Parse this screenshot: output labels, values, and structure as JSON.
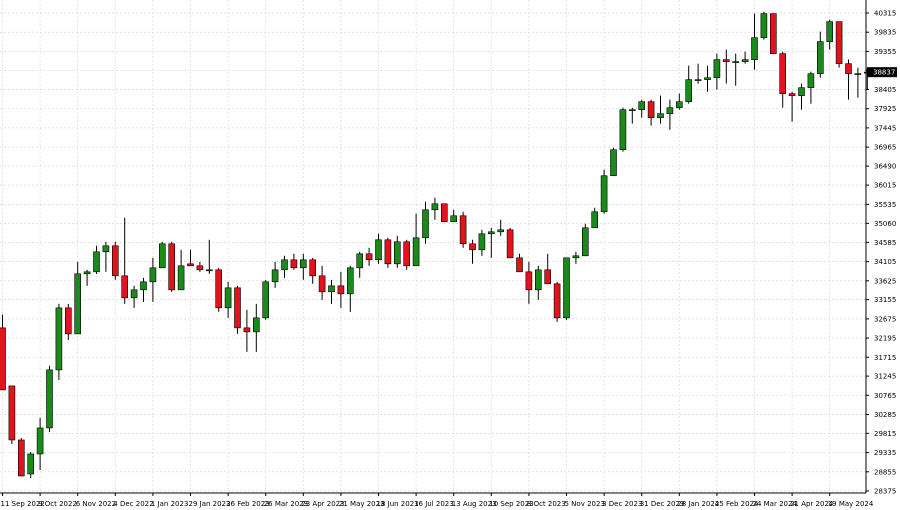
{
  "colors": {
    "background": "#ffffff",
    "grid": "#d9d9d9",
    "up": "#1a8a1a",
    "down": "#e0141c",
    "wick": "#000000",
    "axis_text": "#000000",
    "price_tag": "#000000"
  },
  "chart_data": {
    "type": "candlestick",
    "timeframe": "weekly",
    "grid": true,
    "ylim": [
      28375,
      40370
    ],
    "y_ticks": [
      "40315",
      "39835",
      "39355",
      "38880",
      "38405",
      "37925",
      "37445",
      "36965",
      "36490",
      "36015",
      "35535",
      "35060",
      "34585",
      "34105",
      "33625",
      "33155",
      "32675",
      "32195",
      "31715",
      "31245",
      "30765",
      "30285",
      "29815",
      "29335",
      "28855",
      "28375"
    ],
    "x_ticks": [
      {
        "label": "11 Sep 2022",
        "index": 0
      },
      {
        "label": "9 Oct 2022",
        "index": 4
      },
      {
        "label": "6 Nov 2022",
        "index": 8
      },
      {
        "label": "4 Dec 2022",
        "index": 12
      },
      {
        "label": "1 Jan 2023",
        "index": 16
      },
      {
        "label": "29 Jan 2023",
        "index": 20
      },
      {
        "label": "26 Feb 2023",
        "index": 24
      },
      {
        "label": "26 Mar 2023",
        "index": 28
      },
      {
        "label": "23 Apr 2023",
        "index": 32
      },
      {
        "label": "21 May 2023",
        "index": 36
      },
      {
        "label": "18 Jun 2023",
        "index": 40
      },
      {
        "label": "16 Jul 2023",
        "index": 44
      },
      {
        "label": "13 Aug 2023",
        "index": 48
      },
      {
        "label": "10 Sep 2023",
        "index": 52
      },
      {
        "label": "8 Oct 2023",
        "index": 56
      },
      {
        "label": "5 Nov 2023",
        "index": 60
      },
      {
        "label": "3 Dec 2023",
        "index": 64
      },
      {
        "label": "31 Dec 2023",
        "index": 68
      },
      {
        "label": "28 Jan 2024",
        "index": 72
      },
      {
        "label": "25 Feb 2024",
        "index": 76
      },
      {
        "label": "24 Mar 2024",
        "index": 80
      },
      {
        "label": "21 Apr 2024",
        "index": 84
      },
      {
        "label": "19 May 2024",
        "index": 88
      }
    ],
    "last_price": "38837",
    "candles": [
      {
        "o": 32450,
        "h": 32780,
        "l": 30900,
        "c": 30900
      },
      {
        "o": 31000,
        "h": 31000,
        "l": 29550,
        "c": 29650
      },
      {
        "o": 29650,
        "h": 29700,
        "l": 28750,
        "c": 28750
      },
      {
        "o": 28800,
        "h": 29350,
        "l": 28700,
        "c": 29300
      },
      {
        "o": 29300,
        "h": 30200,
        "l": 28900,
        "c": 29950
      },
      {
        "o": 29950,
        "h": 31500,
        "l": 29850,
        "c": 31400
      },
      {
        "o": 31400,
        "h": 33050,
        "l": 31150,
        "c": 32950
      },
      {
        "o": 32950,
        "h": 33050,
        "l": 32150,
        "c": 32300
      },
      {
        "o": 32300,
        "h": 34100,
        "l": 32300,
        "c": 33800
      },
      {
        "o": 33800,
        "h": 33900,
        "l": 33500,
        "c": 33850
      },
      {
        "o": 33850,
        "h": 34500,
        "l": 33800,
        "c": 34350
      },
      {
        "o": 34350,
        "h": 34600,
        "l": 33850,
        "c": 34500
      },
      {
        "o": 34500,
        "h": 34600,
        "l": 33650,
        "c": 33750
      },
      {
        "o": 33750,
        "h": 35200,
        "l": 33050,
        "c": 33200
      },
      {
        "o": 33200,
        "h": 33500,
        "l": 32950,
        "c": 33400
      },
      {
        "o": 33400,
        "h": 33700,
        "l": 33100,
        "c": 33600
      },
      {
        "o": 33600,
        "h": 34200,
        "l": 33100,
        "c": 33950
      },
      {
        "o": 33950,
        "h": 34600,
        "l": 33950,
        "c": 34550
      },
      {
        "o": 34550,
        "h": 34600,
        "l": 33350,
        "c": 33400
      },
      {
        "o": 33400,
        "h": 34400,
        "l": 33400,
        "c": 34000
      },
      {
        "o": 34050,
        "h": 34400,
        "l": 34000,
        "c": 34000
      },
      {
        "o": 34000,
        "h": 34100,
        "l": 33850,
        "c": 33900
      },
      {
        "o": 33900,
        "h": 34650,
        "l": 33800,
        "c": 33900
      },
      {
        "o": 33900,
        "h": 33950,
        "l": 32850,
        "c": 32950
      },
      {
        "o": 32950,
        "h": 33600,
        "l": 32700,
        "c": 33450
      },
      {
        "o": 33450,
        "h": 33500,
        "l": 32300,
        "c": 32450
      },
      {
        "o": 32450,
        "h": 32900,
        "l": 31850,
        "c": 32350
      },
      {
        "o": 32350,
        "h": 33050,
        "l": 31850,
        "c": 32700
      },
      {
        "o": 32700,
        "h": 33650,
        "l": 32650,
        "c": 33600
      },
      {
        "o": 33600,
        "h": 34100,
        "l": 33450,
        "c": 33900
      },
      {
        "o": 33900,
        "h": 34250,
        "l": 33700,
        "c": 34150
      },
      {
        "o": 34150,
        "h": 34300,
        "l": 33900,
        "c": 33950
      },
      {
        "o": 33950,
        "h": 34300,
        "l": 33650,
        "c": 34150
      },
      {
        "o": 34150,
        "h": 34200,
        "l": 33550,
        "c": 33750
      },
      {
        "o": 33750,
        "h": 34000,
        "l": 33150,
        "c": 33350
      },
      {
        "o": 33350,
        "h": 33650,
        "l": 33050,
        "c": 33500
      },
      {
        "o": 33500,
        "h": 33850,
        "l": 32950,
        "c": 33300
      },
      {
        "o": 33300,
        "h": 34000,
        "l": 32850,
        "c": 33950
      },
      {
        "o": 33950,
        "h": 34350,
        "l": 33700,
        "c": 34300
      },
      {
        "o": 34300,
        "h": 34450,
        "l": 34000,
        "c": 34150
      },
      {
        "o": 34150,
        "h": 34800,
        "l": 34050,
        "c": 34650
      },
      {
        "o": 34650,
        "h": 34700,
        "l": 33950,
        "c": 34050
      },
      {
        "o": 34050,
        "h": 34750,
        "l": 33950,
        "c": 34600
      },
      {
        "o": 34600,
        "h": 34650,
        "l": 33900,
        "c": 34000
      },
      {
        "o": 34000,
        "h": 35300,
        "l": 34000,
        "c": 34700
      },
      {
        "o": 34700,
        "h": 35600,
        "l": 34550,
        "c": 35400
      },
      {
        "o": 35400,
        "h": 35700,
        "l": 35150,
        "c": 35550
      },
      {
        "o": 35550,
        "h": 35550,
        "l": 35150,
        "c": 35100
      },
      {
        "o": 35100,
        "h": 35400,
        "l": 35100,
        "c": 35250
      },
      {
        "o": 35250,
        "h": 35350,
        "l": 34450,
        "c": 34550
      },
      {
        "o": 34550,
        "h": 34650,
        "l": 34050,
        "c": 34400
      },
      {
        "o": 34400,
        "h": 34900,
        "l": 34250,
        "c": 34800
      },
      {
        "o": 34800,
        "h": 34950,
        "l": 34200,
        "c": 34850
      },
      {
        "o": 34850,
        "h": 35150,
        "l": 34750,
        "c": 34900
      },
      {
        "o": 34900,
        "h": 34950,
        "l": 34200,
        "c": 34200
      },
      {
        "o": 34200,
        "h": 34300,
        "l": 33850,
        "c": 33850
      },
      {
        "o": 33850,
        "h": 34100,
        "l": 33050,
        "c": 33400
      },
      {
        "o": 33400,
        "h": 34000,
        "l": 33150,
        "c": 33900
      },
      {
        "o": 33900,
        "h": 34300,
        "l": 33550,
        "c": 33550
      },
      {
        "o": 33550,
        "h": 33600,
        "l": 32600,
        "c": 32700
      },
      {
        "o": 32700,
        "h": 34200,
        "l": 32650,
        "c": 34200
      },
      {
        "o": 34200,
        "h": 34350,
        "l": 34050,
        "c": 34250
      },
      {
        "o": 34250,
        "h": 35050,
        "l": 34250,
        "c": 34950
      },
      {
        "o": 34950,
        "h": 35450,
        "l": 34950,
        "c": 35350
      },
      {
        "o": 35350,
        "h": 36400,
        "l": 35300,
        "c": 36250
      },
      {
        "o": 36250,
        "h": 36950,
        "l": 36250,
        "c": 36900
      },
      {
        "o": 36900,
        "h": 37950,
        "l": 36850,
        "c": 37900
      },
      {
        "o": 37900,
        "h": 37950,
        "l": 37550,
        "c": 37900
      },
      {
        "o": 37900,
        "h": 38150,
        "l": 37700,
        "c": 38100
      },
      {
        "o": 38100,
        "h": 38150,
        "l": 37500,
        "c": 37700
      },
      {
        "o": 37700,
        "h": 38250,
        "l": 37550,
        "c": 37800
      },
      {
        "o": 37800,
        "h": 38150,
        "l": 37400,
        "c": 37950
      },
      {
        "o": 37950,
        "h": 38300,
        "l": 37900,
        "c": 38100
      },
      {
        "o": 38100,
        "h": 39000,
        "l": 38050,
        "c": 38650
      },
      {
        "o": 38650,
        "h": 39050,
        "l": 38550,
        "c": 38650
      },
      {
        "o": 38650,
        "h": 39000,
        "l": 38350,
        "c": 38700
      },
      {
        "o": 38700,
        "h": 39300,
        "l": 38400,
        "c": 39150
      },
      {
        "o": 39150,
        "h": 39400,
        "l": 38550,
        "c": 39100
      },
      {
        "o": 39100,
        "h": 39300,
        "l": 38500,
        "c": 39100
      },
      {
        "o": 39100,
        "h": 39350,
        "l": 39050,
        "c": 39150
      },
      {
        "o": 39150,
        "h": 40300,
        "l": 38900,
        "c": 39700
      },
      {
        "o": 39700,
        "h": 40350,
        "l": 39650,
        "c": 40300
      },
      {
        "o": 40300,
        "h": 40300,
        "l": 39300,
        "c": 39300
      },
      {
        "o": 39300,
        "h": 39350,
        "l": 37950,
        "c": 38300
      },
      {
        "o": 38300,
        "h": 38350,
        "l": 37600,
        "c": 38250
      },
      {
        "o": 38250,
        "h": 38550,
        "l": 37900,
        "c": 38450
      },
      {
        "o": 38450,
        "h": 38850,
        "l": 38050,
        "c": 38800
      },
      {
        "o": 38800,
        "h": 39850,
        "l": 38700,
        "c": 39600
      },
      {
        "o": 39600,
        "h": 40150,
        "l": 39400,
        "c": 40100
      },
      {
        "o": 40100,
        "h": 40100,
        "l": 38950,
        "c": 39050
      },
      {
        "o": 39050,
        "h": 39150,
        "l": 38150,
        "c": 38800
      },
      {
        "o": 38800,
        "h": 38950,
        "l": 38200,
        "c": 38800
      },
      {
        "o": 38820,
        "h": 38950,
        "l": 38400,
        "c": 38837
      }
    ]
  }
}
